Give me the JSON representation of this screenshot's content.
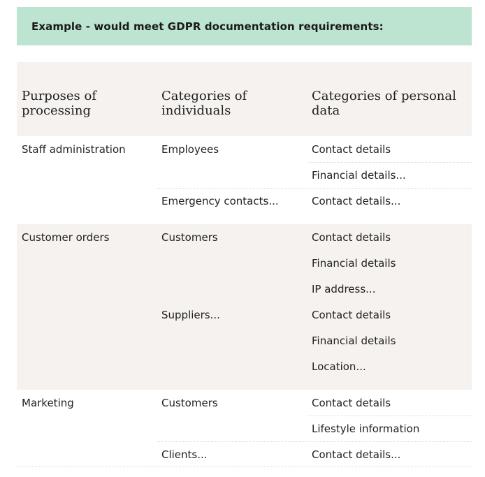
{
  "banner": {
    "title": "Example - would meet GDPR documentation requirements:"
  },
  "table": {
    "headers": [
      "Purposes of\nprocessing",
      "Categories of\nindividuals",
      "Categories of personal\ndata"
    ],
    "groups": [
      {
        "purpose": "Staff administration",
        "individuals": [
          {
            "name": "Employees",
            "data": [
              "Contact details",
              "Financial details..."
            ]
          },
          {
            "name": "Emergency contacts...",
            "data": [
              "Contact details..."
            ]
          }
        ]
      },
      {
        "purpose": "Customer orders",
        "individuals": [
          {
            "name": "Customers",
            "data": [
              "Contact details",
              "Financial details",
              "IP address..."
            ]
          },
          {
            "name": "Suppliers...",
            "data": [
              "Contact details",
              "Financial details",
              "Location..."
            ]
          }
        ]
      },
      {
        "purpose": "Marketing",
        "individuals": [
          {
            "name": "Customers",
            "data": [
              "Contact details",
              "Lifestyle information"
            ]
          },
          {
            "name": "Clients...",
            "data": [
              "Contact details..."
            ]
          }
        ]
      }
    ]
  },
  "colors": {
    "banner_background": "#bde3d1",
    "shaded_row_background": "#f5f2ef"
  }
}
